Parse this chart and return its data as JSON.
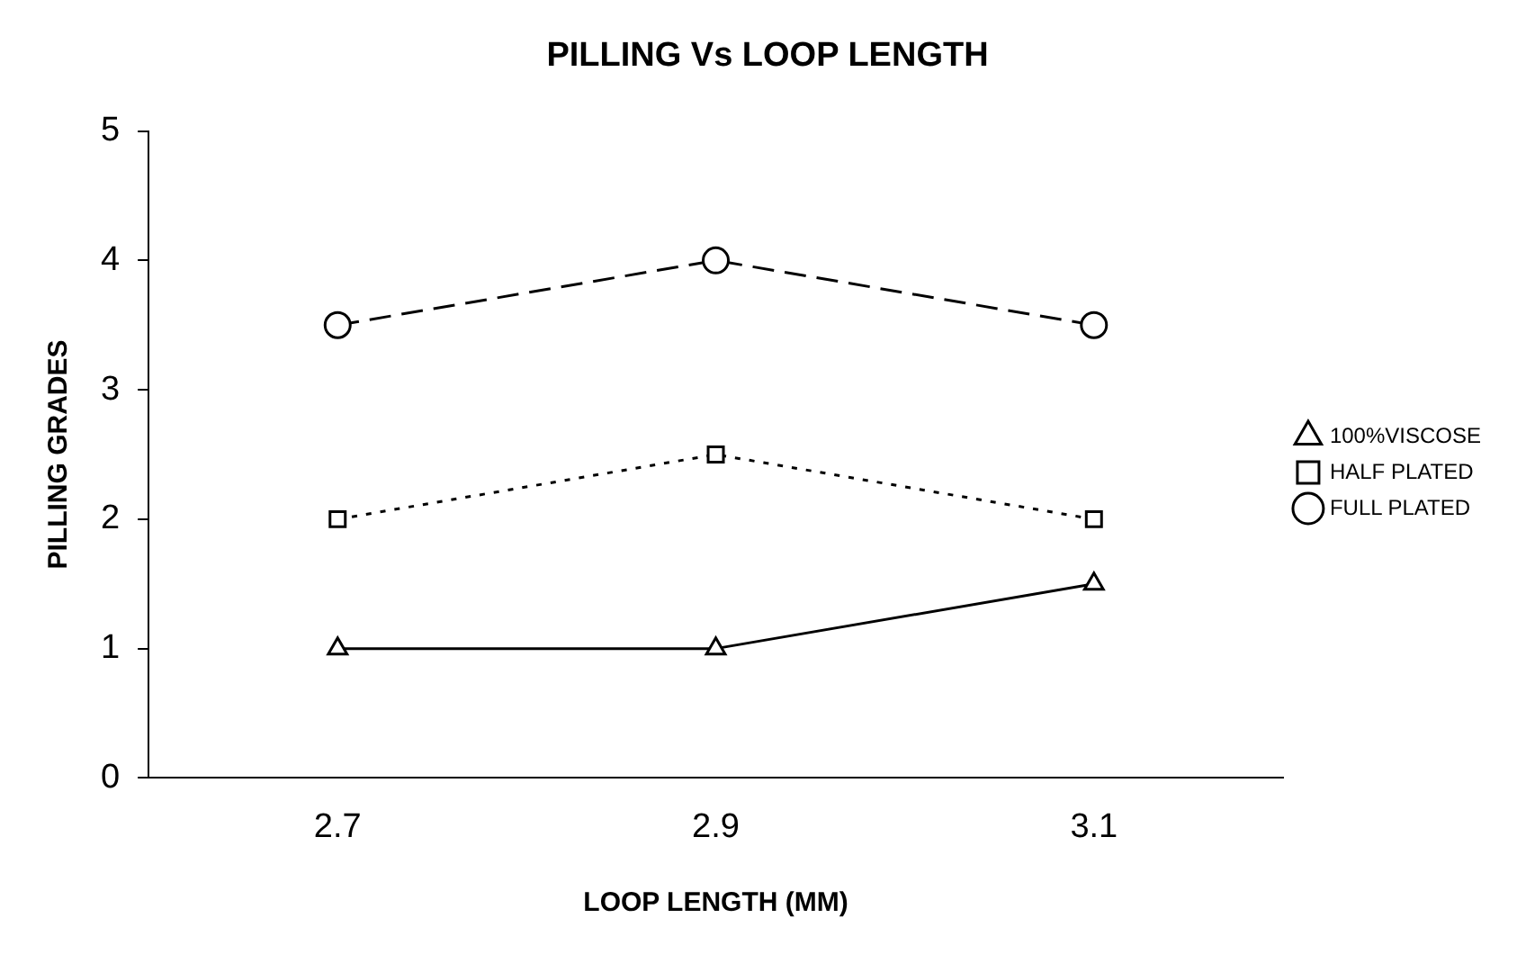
{
  "chart_data": {
    "type": "line",
    "title": "PILLING Vs LOOP LENGTH",
    "xlabel": "LOOP LENGTH (MM)",
    "ylabel": "PILLING GRADES",
    "categories": [
      "2.7",
      "2.9",
      "3.1"
    ],
    "series": [
      {
        "name": "100%VISCOSE",
        "color": "#000000",
        "values": [
          1,
          1,
          1.5
        ],
        "marker": "triangle",
        "line_style": "solid"
      },
      {
        "name": "HALF PLATED",
        "color": "#000000",
        "values": [
          2,
          2.5,
          2
        ],
        "marker": "square",
        "line_style": "dotted"
      },
      {
        "name": "FULL PLATED",
        "color": "#000000",
        "values": [
          3.5,
          4,
          3.5
        ],
        "marker": "circle",
        "line_style": "dashed"
      }
    ],
    "ylim": [
      0,
      5
    ],
    "yticks": [
      0,
      1,
      2,
      3,
      4,
      5
    ],
    "grid": false,
    "legend": "right"
  }
}
